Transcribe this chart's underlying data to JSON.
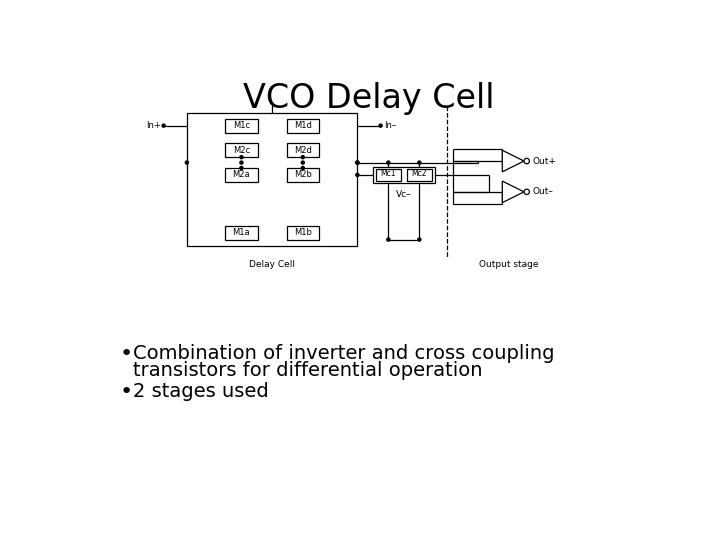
{
  "title": "VCO Delay Cell",
  "title_fontsize": 24,
  "bullet1_line1": "Combination of inverter and cross coupling",
  "bullet1_line2": "transistors for differential operation",
  "bullet2": "2 stages used",
  "bullet_fontsize": 14,
  "bg_color": "#ffffff",
  "fg_color": "#000000",
  "label_In_plus": "In+",
  "label_In_minus": "In–",
  "label_Out_plus": "Out+",
  "label_Out_minus": "Out–",
  "label_Vc": "Vc–",
  "label_M1a": "M1a",
  "label_M1b": "M1b",
  "label_M1c": "M1c",
  "label_M1d": "M1d",
  "label_M2a": "M2a",
  "label_M2b": "M2b",
  "label_M2c": "M2c",
  "label_M2d": "M2d",
  "label_Mc1": "Mc1",
  "label_Mc2": "Mc2",
  "label_delay": "Delay Cell",
  "label_output": "Output stage",
  "circuit_scale": 1.0
}
